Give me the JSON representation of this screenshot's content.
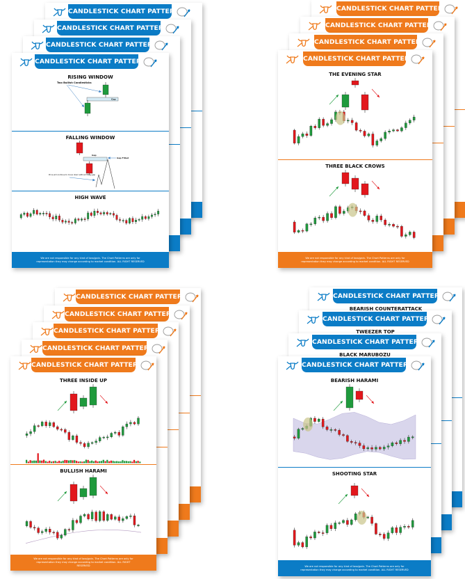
{
  "header_title": "CANDLESTICK CHART PATTERNS",
  "footer_text": "We are not responsible for any kind of loss/gain. The Chart Patterns are only for representation they may change according to market condition. ALL RIGHT RESERVED",
  "colors": {
    "blue": "#0b7cc6",
    "orange": "#ef7a1c",
    "bullish": "#1f9a3d",
    "bearish": "#e2171c",
    "highlight": "#c9c48a",
    "band": "#d9d6ec"
  },
  "icons": {
    "left": "bull-logo-icon",
    "right": "bear-logo-icon"
  },
  "stacks": [
    {
      "theme": "blue",
      "back_titles": [],
      "sections": [
        {
          "title": "RISING WINDOW",
          "candles": [
            "green",
            "green"
          ],
          "labels": [
            "Two Bullish Candlesticks",
            "Gap"
          ]
        },
        {
          "title": "FALLING WINDOW",
          "candles": [
            "red",
            "red"
          ],
          "labels": [
            "Gap",
            "Gap Filled",
            "Price will continue to move down without filling gap"
          ]
        },
        {
          "title": "HIGH WAVE",
          "candles": []
        }
      ]
    },
    {
      "theme": "orange",
      "back_titles": [],
      "sections": [
        {
          "title": "THE EVENING STAR",
          "candles": [
            "green",
            "red",
            "red"
          ]
        },
        {
          "title": "THREE BLACK CROWS",
          "candles": [
            "red",
            "red",
            "red"
          ]
        }
      ]
    },
    {
      "theme": "orange",
      "back_titles": [],
      "sections": [
        {
          "title": "THREE INSIDE UP",
          "candles": [
            "red",
            "green",
            "green"
          ]
        },
        {
          "title": "BULLISH HARAMI",
          "candles": [
            "red",
            "green",
            "green"
          ]
        }
      ]
    },
    {
      "theme": "blue",
      "back_titles": [
        "BLACK MARUBOZU",
        "TWEEZER TOP",
        "BEARISH COUNTERATTACK"
      ],
      "sections": [
        {
          "title": "BEARISH HARAMI",
          "candles": [
            "green",
            "red"
          ]
        },
        {
          "title": "SHOOTING STAR",
          "candles": [
            "red"
          ]
        }
      ]
    }
  ]
}
